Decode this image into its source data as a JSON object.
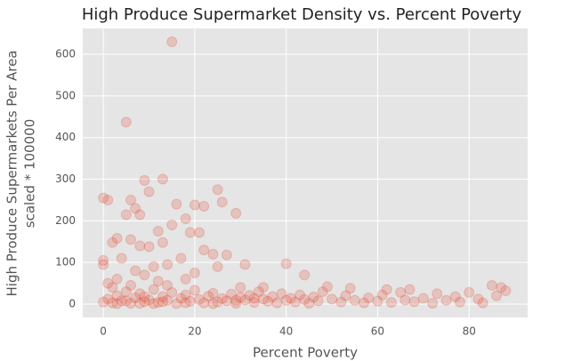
{
  "chart_data": {
    "type": "scatter",
    "title": "High Produce Supermarket Density vs. Percent Poverty",
    "xlabel": "Percent Poverty",
    "ylabel": [
      "High Produce Supermarkets Per Area",
      "scaled * 100000"
    ],
    "color": "#E24A33",
    "grid": true,
    "xlim": [
      -4.5,
      92.8
    ],
    "ylim": [
      -32,
      662
    ],
    "xticks": [
      0,
      20,
      40,
      60,
      80
    ],
    "yticks": [
      0,
      100,
      200,
      300,
      400,
      500,
      600
    ],
    "x": [
      15,
      5,
      0,
      1,
      9,
      13,
      25,
      10,
      26,
      16,
      20,
      6,
      22,
      29,
      5,
      8,
      7,
      15,
      18,
      19,
      21,
      12,
      3,
      2,
      6,
      8,
      10,
      13,
      17,
      24,
      27,
      22,
      4,
      0,
      0,
      40,
      31,
      14,
      11,
      25,
      44,
      20,
      7,
      9,
      3,
      12,
      18,
      1,
      30,
      35,
      0,
      1,
      2,
      3,
      4,
      5,
      6,
      7,
      8,
      9,
      10,
      11,
      12,
      13,
      14,
      15,
      16,
      17,
      18,
      19,
      20,
      21,
      22,
      23,
      24,
      25,
      26,
      27,
      28,
      29,
      30,
      31,
      32,
      33,
      34,
      35,
      36,
      37,
      38,
      39,
      40,
      41,
      42,
      43,
      44,
      45,
      46,
      47,
      48,
      50,
      52,
      53,
      55,
      57,
      58,
      60,
      61,
      63,
      65,
      66,
      67,
      68,
      70,
      72,
      73,
      75,
      77,
      78,
      80,
      82,
      83,
      85,
      86,
      88,
      87,
      62,
      54,
      49,
      2,
      6,
      14,
      3,
      8,
      11,
      18,
      24,
      29,
      33,
      5,
      9,
      13
    ],
    "values": [
      630,
      437,
      255,
      250,
      297,
      300,
      275,
      270,
      245,
      240,
      238,
      250,
      235,
      218,
      215,
      215,
      230,
      190,
      205,
      172,
      172,
      175,
      158,
      148,
      155,
      140,
      138,
      148,
      110,
      120,
      118,
      130,
      110,
      105,
      95,
      97,
      95,
      95,
      90,
      90,
      70,
      75,
      80,
      70,
      60,
      55,
      60,
      50,
      40,
      40,
      5,
      12,
      3,
      20,
      8,
      30,
      2,
      15,
      25,
      6,
      10,
      35,
      4,
      18,
      9,
      28,
      1,
      14,
      22,
      7,
      33,
      11,
      3,
      19,
      26,
      5,
      13,
      8,
      24,
      2,
      16,
      10,
      21,
      4,
      30,
      12,
      7,
      18,
      3,
      25,
      9,
      14,
      5,
      22,
      11,
      2,
      17,
      8,
      30,
      12,
      5,
      20,
      9,
      3,
      15,
      7,
      22,
      4,
      28,
      10,
      35,
      6,
      14,
      2,
      25,
      9,
      18,
      5,
      28,
      12,
      3,
      45,
      20,
      32,
      40,
      35,
      38,
      42,
      40,
      45,
      45,
      1,
      2,
      1,
      3,
      1,
      9,
      14,
      8,
      18,
      6
    ]
  }
}
